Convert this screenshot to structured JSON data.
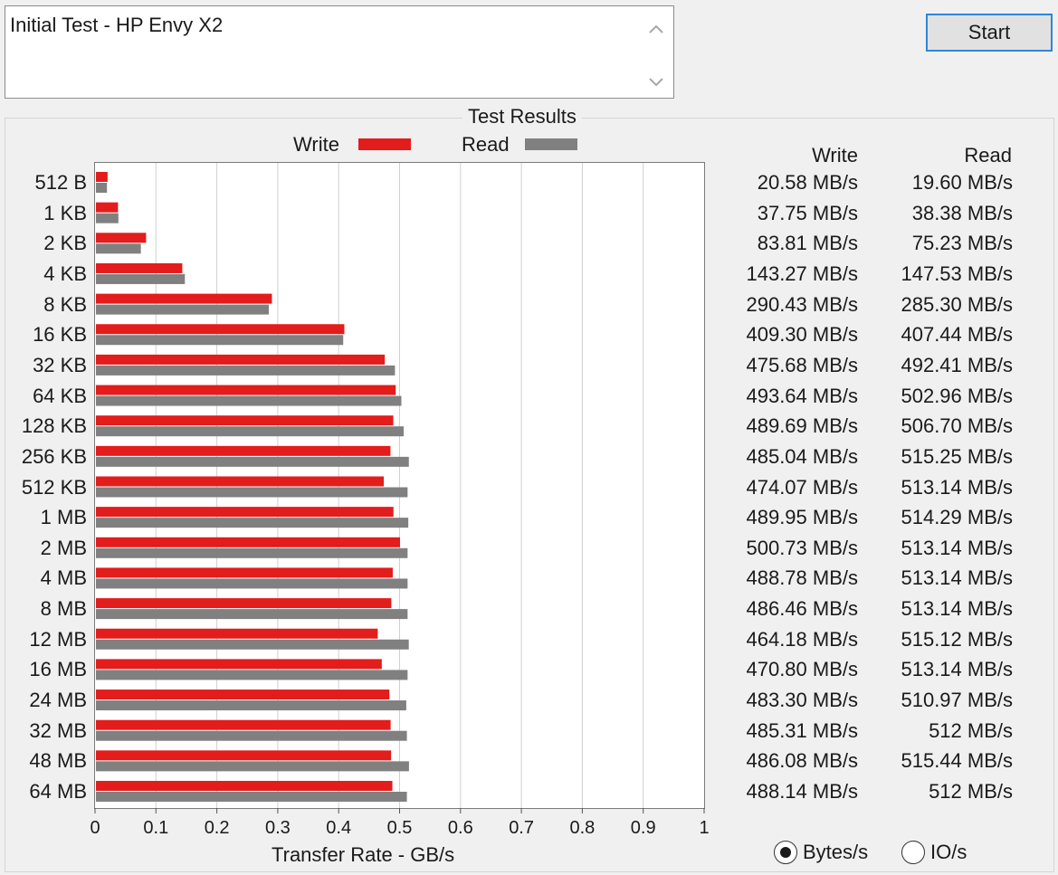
{
  "description": {
    "text": "Initial Test - HP Envy X2"
  },
  "start_button": {
    "label": "Start"
  },
  "group": {
    "title": "Test Results"
  },
  "legend": {
    "write_label": "Write",
    "read_label": "Read"
  },
  "columns": {
    "write_header": "Write",
    "read_header": "Read"
  },
  "units": {
    "bytes_label": "Bytes/s",
    "io_label": "IO/s",
    "selected": "Bytes/s"
  },
  "colors": {
    "write": "#e31c1c",
    "read": "#808080",
    "grid": "#d0d0d0"
  },
  "chart_data": {
    "type": "bar",
    "orientation": "horizontal",
    "xlabel": "Transfer Rate - GB/s",
    "xlim": [
      0,
      1
    ],
    "xticks": [
      "0",
      "0.1",
      "0.2",
      "0.3",
      "0.4",
      "0.5",
      "0.6",
      "0.7",
      "0.8",
      "0.9",
      "1"
    ],
    "categories": [
      "512 B",
      "1 KB",
      "2 KB",
      "4 KB",
      "8 KB",
      "16 KB",
      "32 KB",
      "64 KB",
      "128 KB",
      "256 KB",
      "512 KB",
      "1 MB",
      "2 MB",
      "4 MB",
      "8 MB",
      "12 MB",
      "16 MB",
      "24 MB",
      "32 MB",
      "48 MB",
      "64 MB"
    ],
    "series": [
      {
        "name": "Write",
        "values": [
          0.02058,
          0.03775,
          0.08381,
          0.14327,
          0.29043,
          0.4093,
          0.47568,
          0.49364,
          0.48969,
          0.48504,
          0.47407,
          0.48995,
          0.50073,
          0.48878,
          0.48646,
          0.46418,
          0.4708,
          0.4833,
          0.48531,
          0.48608,
          0.48814
        ]
      },
      {
        "name": "Read",
        "values": [
          0.0196,
          0.03838,
          0.07523,
          0.14753,
          0.2853,
          0.40744,
          0.49241,
          0.50296,
          0.5067,
          0.51525,
          0.51314,
          0.51429,
          0.51314,
          0.51314,
          0.51314,
          0.51512,
          0.51314,
          0.51097,
          0.512,
          0.51544,
          0.512
        ]
      }
    ],
    "write_text": [
      "20.58 MB/s",
      "37.75 MB/s",
      "83.81 MB/s",
      "143.27 MB/s",
      "290.43 MB/s",
      "409.30 MB/s",
      "475.68 MB/s",
      "493.64 MB/s",
      "489.69 MB/s",
      "485.04 MB/s",
      "474.07 MB/s",
      "489.95 MB/s",
      "500.73 MB/s",
      "488.78 MB/s",
      "486.46 MB/s",
      "464.18 MB/s",
      "470.80 MB/s",
      "483.30 MB/s",
      "485.31 MB/s",
      "486.08 MB/s",
      "488.14 MB/s"
    ],
    "read_text": [
      "19.60 MB/s",
      "38.38 MB/s",
      "75.23 MB/s",
      "147.53 MB/s",
      "285.30 MB/s",
      "407.44 MB/s",
      "492.41 MB/s",
      "502.96 MB/s",
      "506.70 MB/s",
      "515.25 MB/s",
      "513.14 MB/s",
      "514.29 MB/s",
      "513.14 MB/s",
      "513.14 MB/s",
      "513.14 MB/s",
      "515.12 MB/s",
      "513.14 MB/s",
      "510.97 MB/s",
      "512 MB/s",
      "515.44 MB/s",
      "512 MB/s"
    ]
  }
}
